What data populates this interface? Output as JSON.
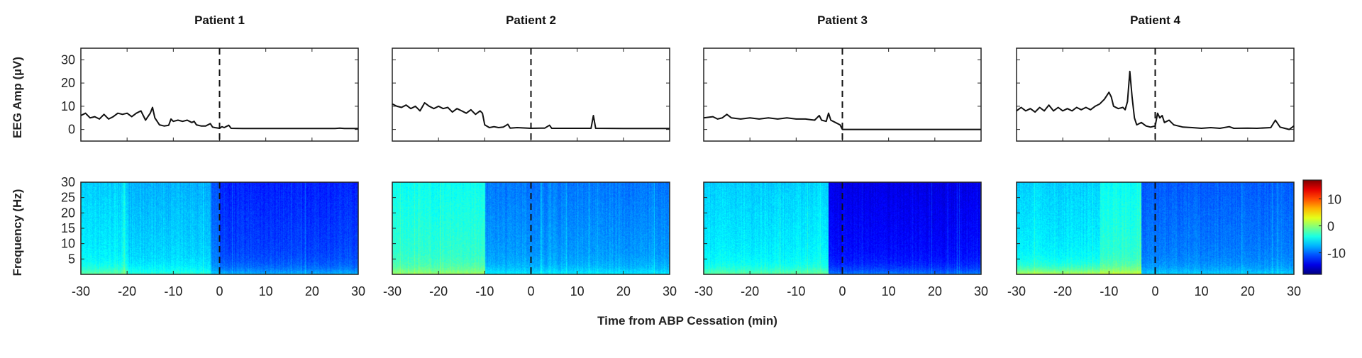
{
  "chart_data": {
    "type": "line+heatmap",
    "xlabel": "Time from ABP Cessation (min)",
    "xlim": [
      -30,
      30
    ],
    "xticks": [
      -30,
      -20,
      -10,
      0,
      10,
      20,
      30
    ],
    "event_marker": {
      "x": 0,
      "style": "dashed"
    },
    "top_row": {
      "ylabel": "EEG Amp (µV)",
      "ylim": [
        -5,
        35
      ],
      "yticks": [
        0,
        10,
        20,
        30
      ]
    },
    "bottom_row": {
      "ylabel": "Frequency (Hz)",
      "ylim": [
        0,
        30
      ],
      "yticks": [
        5,
        10,
        15,
        20,
        25,
        30
      ],
      "colormap": "jet",
      "colorbar": {
        "range": [
          -18,
          17
        ],
        "ticks": [
          10,
          0,
          -10
        ]
      }
    },
    "panels": [
      {
        "title": "Patient 1",
        "eeg": [
          [
            -30,
            6
          ],
          [
            -29,
            7
          ],
          [
            -28,
            5
          ],
          [
            -27,
            5.5
          ],
          [
            -26,
            4.5
          ],
          [
            -25,
            6.5
          ],
          [
            -24,
            4.5
          ],
          [
            -23,
            5.5
          ],
          [
            -22,
            7
          ],
          [
            -21,
            6.5
          ],
          [
            -20,
            7
          ],
          [
            -19,
            5.5
          ],
          [
            -18,
            7
          ],
          [
            -17,
            8
          ],
          [
            -16,
            4
          ],
          [
            -15.5,
            5.5
          ],
          [
            -15,
            7
          ],
          [
            -14.5,
            9.5
          ],
          [
            -14,
            5
          ],
          [
            -13,
            2
          ],
          [
            -12,
            1.5
          ],
          [
            -11,
            1.8
          ],
          [
            -10.5,
            4.5
          ],
          [
            -10,
            3.5
          ],
          [
            -9,
            4
          ],
          [
            -8,
            3.5
          ],
          [
            -7,
            4
          ],
          [
            -6,
            3
          ],
          [
            -5.5,
            3.5
          ],
          [
            -5,
            2
          ],
          [
            -4,
            1.5
          ],
          [
            -3,
            1.5
          ],
          [
            -2,
            2.5
          ],
          [
            -1.5,
            1
          ],
          [
            -1,
            0.8
          ],
          [
            0,
            0.5
          ],
          [
            0.5,
            1.2
          ],
          [
            1,
            0.8
          ],
          [
            2,
            1.8
          ],
          [
            2.5,
            0.5
          ],
          [
            5,
            0.4
          ],
          [
            10,
            0.4
          ],
          [
            15,
            0.4
          ],
          [
            20,
            0.4
          ],
          [
            25,
            0.4
          ],
          [
            26,
            0.6
          ],
          [
            27,
            0.4
          ],
          [
            30,
            0.4
          ]
        ],
        "spectrogram_segments": [
          {
            "t": [
              -30,
              -20
            ],
            "high_db": -5,
            "low_db": -1
          },
          {
            "t": [
              -20,
              -2
            ],
            "high_db": -6,
            "low_db": -3
          },
          {
            "t": [
              -2,
              0
            ],
            "high_db": -9,
            "low_db": -6
          },
          {
            "t": [
              0,
              30
            ],
            "high_db": -11,
            "low_db": -7
          }
        ]
      },
      {
        "title": "Patient 2",
        "eeg": [
          [
            -30,
            11
          ],
          [
            -29,
            10
          ],
          [
            -28,
            9.5
          ],
          [
            -27,
            10.5
          ],
          [
            -26,
            9
          ],
          [
            -25,
            10
          ],
          [
            -24,
            8
          ],
          [
            -23,
            11.5
          ],
          [
            -22,
            10
          ],
          [
            -21,
            9
          ],
          [
            -20,
            10
          ],
          [
            -19,
            9
          ],
          [
            -18,
            9.5
          ],
          [
            -17,
            7.5
          ],
          [
            -16,
            9
          ],
          [
            -15,
            8
          ],
          [
            -14,
            7
          ],
          [
            -13,
            8.5
          ],
          [
            -12,
            6.5
          ],
          [
            -11,
            8
          ],
          [
            -10.5,
            7
          ],
          [
            -10,
            2
          ],
          [
            -9,
            0.8
          ],
          [
            -8,
            1.2
          ],
          [
            -7,
            0.8
          ],
          [
            -6,
            1
          ],
          [
            -5,
            2.2
          ],
          [
            -4.5,
            0.6
          ],
          [
            -3,
            0.8
          ],
          [
            0,
            0.5
          ],
          [
            3,
            0.6
          ],
          [
            4,
            1.8
          ],
          [
            4.5,
            0.5
          ],
          [
            13,
            0.5
          ],
          [
            13.5,
            6
          ],
          [
            14,
            0.5
          ],
          [
            20,
            0.4
          ],
          [
            30,
            0.4
          ]
        ],
        "spectrogram_segments": [
          {
            "t": [
              -30,
              -10
            ],
            "high_db": -3,
            "low_db": 1
          },
          {
            "t": [
              -10,
              30
            ],
            "high_db": -8,
            "low_db": -5
          }
        ]
      },
      {
        "title": "Patient 3",
        "eeg": [
          [
            -30,
            5
          ],
          [
            -28,
            5.5
          ],
          [
            -27,
            4.5
          ],
          [
            -26,
            5
          ],
          [
            -25,
            6.5
          ],
          [
            -24,
            5
          ],
          [
            -22,
            4.5
          ],
          [
            -20,
            5
          ],
          [
            -18,
            4.5
          ],
          [
            -16,
            5
          ],
          [
            -14,
            4.5
          ],
          [
            -12,
            5
          ],
          [
            -10,
            4.5
          ],
          [
            -8,
            4.5
          ],
          [
            -6,
            4
          ],
          [
            -5,
            6
          ],
          [
            -4.5,
            4
          ],
          [
            -3.5,
            3.5
          ],
          [
            -3,
            7
          ],
          [
            -2.5,
            4
          ],
          [
            -1.5,
            3
          ],
          [
            -0.5,
            2
          ],
          [
            0,
            0
          ],
          [
            5,
            0
          ],
          [
            10,
            0
          ],
          [
            15,
            0
          ],
          [
            20,
            0
          ],
          [
            25,
            0
          ],
          [
            30,
            0
          ]
        ],
        "spectrogram_segments": [
          {
            "t": [
              -30,
              -3
            ],
            "high_db": -5,
            "low_db": -1
          },
          {
            "t": [
              -3,
              30
            ],
            "high_db": -13,
            "low_db": -9
          }
        ]
      },
      {
        "title": "Patient 4",
        "eeg": [
          [
            -30,
            8
          ],
          [
            -29,
            9.5
          ],
          [
            -28,
            8
          ],
          [
            -27,
            9
          ],
          [
            -26,
            7.5
          ],
          [
            -25,
            9.5
          ],
          [
            -24,
            8
          ],
          [
            -23,
            10.5
          ],
          [
            -22,
            8
          ],
          [
            -21,
            9.5
          ],
          [
            -20,
            8
          ],
          [
            -19,
            9
          ],
          [
            -18,
            8
          ],
          [
            -17,
            9.5
          ],
          [
            -16,
            8.5
          ],
          [
            -15,
            9.5
          ],
          [
            -14,
            8.5
          ],
          [
            -13,
            10
          ],
          [
            -12,
            11
          ],
          [
            -11,
            13
          ],
          [
            -10,
            16
          ],
          [
            -9.5,
            14
          ],
          [
            -9,
            10
          ],
          [
            -8,
            9
          ],
          [
            -7,
            9.5
          ],
          [
            -6.5,
            8.5
          ],
          [
            -6,
            12
          ],
          [
            -5.5,
            25
          ],
          [
            -5,
            14
          ],
          [
            -4.5,
            5
          ],
          [
            -4,
            2
          ],
          [
            -3,
            3
          ],
          [
            -2,
            1.5
          ],
          [
            -1,
            1
          ],
          [
            0,
            1.5
          ],
          [
            0.5,
            7
          ],
          [
            1,
            5
          ],
          [
            1.5,
            6
          ],
          [
            2,
            3
          ],
          [
            3,
            4
          ],
          [
            4,
            2
          ],
          [
            5,
            1.5
          ],
          [
            6,
            1
          ],
          [
            8,
            0.8
          ],
          [
            10,
            0.5
          ],
          [
            12,
            0.8
          ],
          [
            14,
            0.5
          ],
          [
            16,
            1.2
          ],
          [
            17,
            0.5
          ],
          [
            20,
            0.6
          ],
          [
            22,
            0.5
          ],
          [
            25,
            0.8
          ],
          [
            26,
            4
          ],
          [
            27,
            1
          ],
          [
            28,
            0.5
          ],
          [
            29,
            0
          ],
          [
            30,
            1.5
          ]
        ],
        "spectrogram_segments": [
          {
            "t": [
              -30,
              -12
            ],
            "high_db": -5,
            "low_db": 2
          },
          {
            "t": [
              -12,
              -3
            ],
            "high_db": -3,
            "low_db": 3
          },
          {
            "t": [
              -3,
              30
            ],
            "high_db": -9,
            "low_db": -6
          }
        ]
      }
    ]
  }
}
